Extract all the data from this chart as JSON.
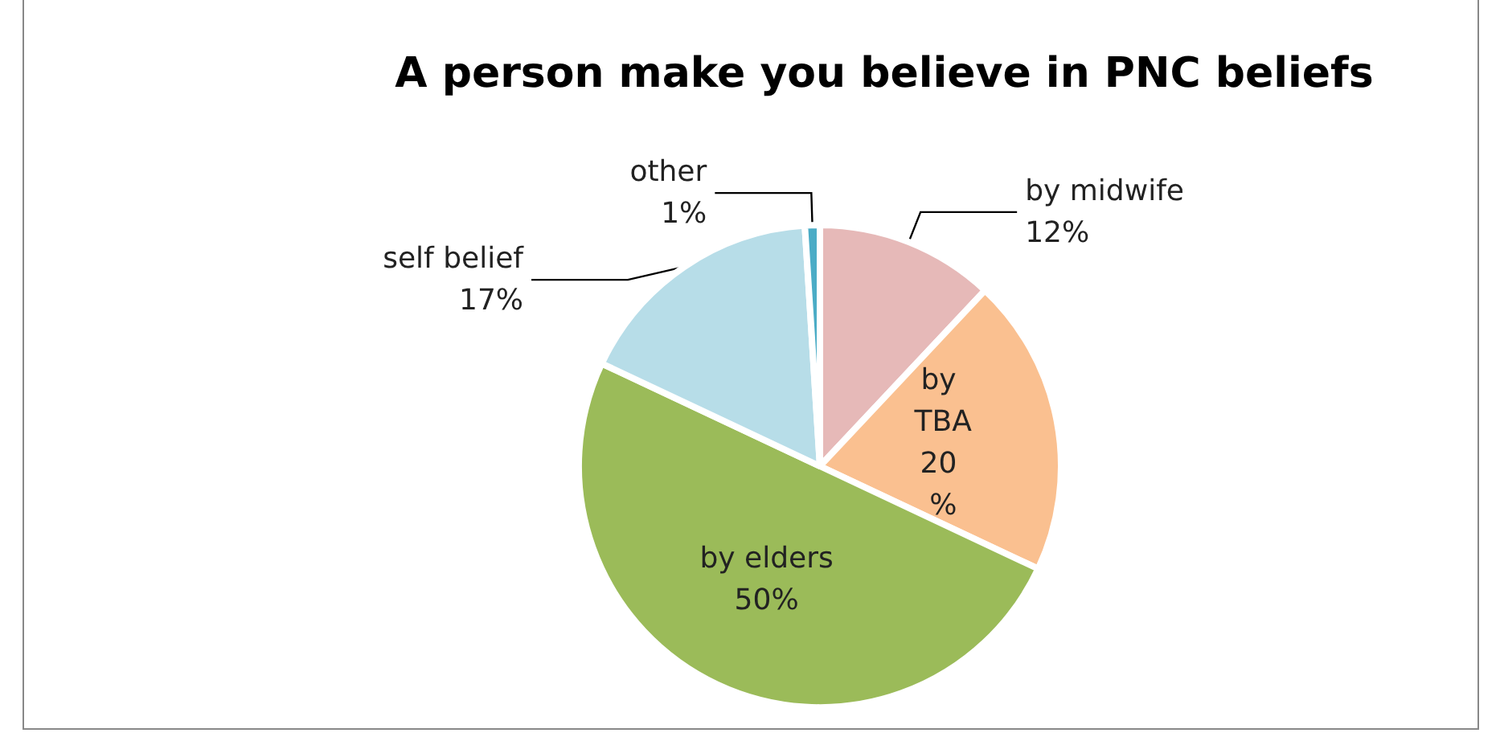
{
  "chart_data": {
    "type": "pie",
    "title": "A person make you believe in PNC beliefs",
    "categories": [
      "by midwife",
      "by TBA",
      "by elders",
      "self belief",
      "other"
    ],
    "values": [
      12,
      20,
      50,
      17,
      1
    ],
    "value_labels": [
      "12%",
      "20 %",
      "50%",
      "17%",
      "1%"
    ],
    "colors": [
      "#e6b9b8",
      "#fac090",
      "#9bbb59",
      "#b7dde8",
      "#4bacc6"
    ]
  }
}
